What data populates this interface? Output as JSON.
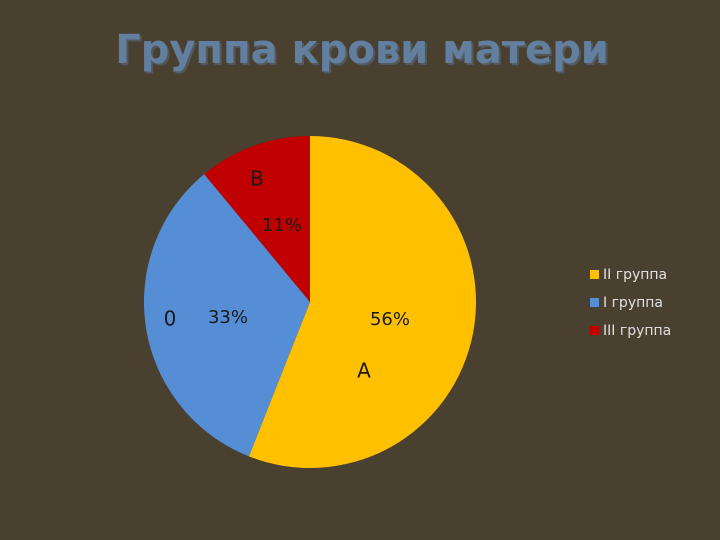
{
  "chart_data": {
    "type": "pie",
    "title": "Группа крови матери",
    "categories": [
      "II группа",
      "I группа",
      "III группа"
    ],
    "values": [
      56,
      33,
      11
    ],
    "value_labels": [
      "56%",
      "33%",
      "11%"
    ],
    "annotations": [
      "A",
      "0",
      "B"
    ],
    "colors": [
      "#ffc000",
      "#558ed5",
      "#c00000"
    ],
    "legend": "right"
  }
}
